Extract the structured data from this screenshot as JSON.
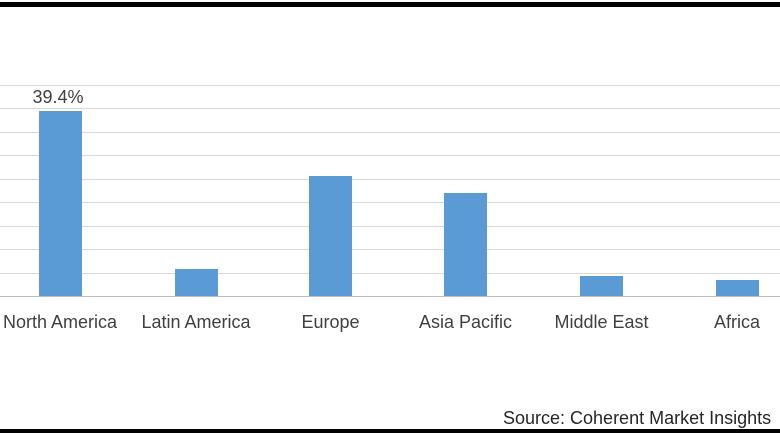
{
  "chart_data": {
    "type": "bar",
    "categories": [
      "North America",
      "Latin America",
      "Europe",
      "Asia Pacific",
      "Middle East",
      "Africa"
    ],
    "values": [
      39.4,
      5.8,
      25.5,
      22.0,
      4.2,
      3.4
    ],
    "data_labels": [
      "39.4%",
      "",
      "",
      "",
      "",
      ""
    ],
    "title": "",
    "xlabel": "",
    "ylabel": "",
    "ylim": [
      0,
      45
    ],
    "grid_step": 5,
    "grid": "horizontal-only",
    "legend": "none",
    "y_axis_tick_labels_visible": false,
    "bar_color": "#5b9bd5"
  },
  "source_note": "Source: Coherent Market Insights",
  "colors": {
    "bar": "#5b9bd5",
    "gridline": "#d9d9d9",
    "axis_line": "#bfbfbf",
    "text": "#404040",
    "source_text": "#262626",
    "border": "#000000",
    "background": "#ffffff"
  }
}
